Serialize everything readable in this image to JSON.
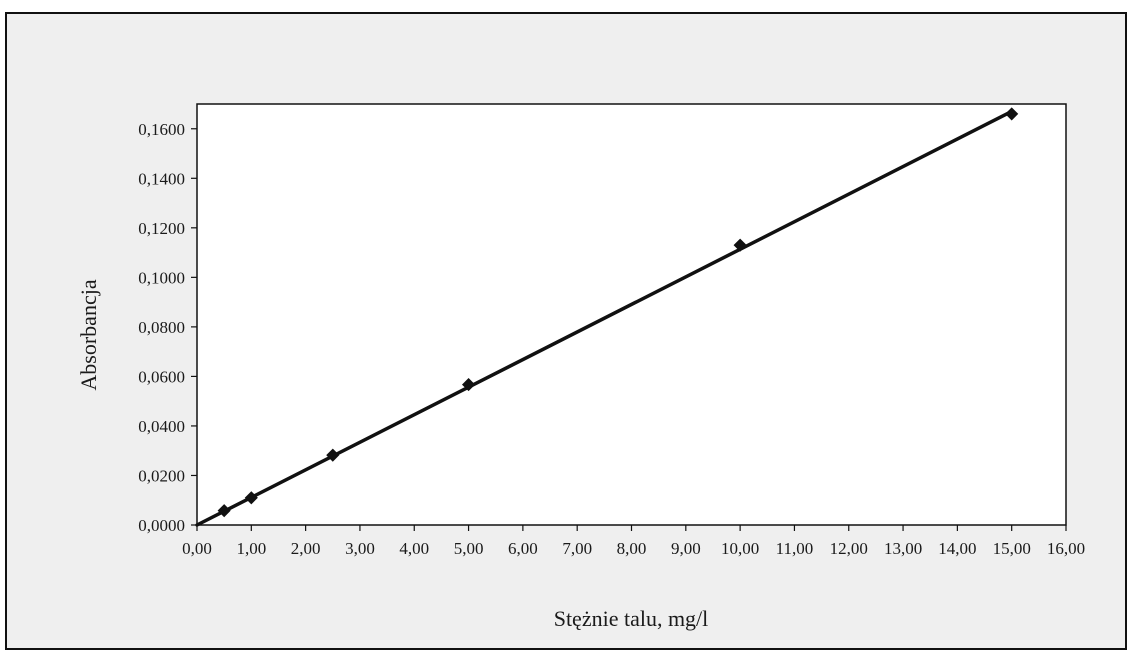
{
  "chart_data": {
    "type": "scatter",
    "title": "",
    "xlabel": "Stężnie talu, mg/l",
    "ylabel": "Absorbancja",
    "xlim": [
      0,
      16
    ],
    "ylim": [
      0,
      0.17
    ],
    "x_ticks": [
      0,
      1,
      2,
      3,
      4,
      5,
      6,
      7,
      8,
      9,
      10,
      11,
      12,
      13,
      14,
      15,
      16
    ],
    "x_tick_labels": [
      "0,00",
      "1,00",
      "2,00",
      "3,00",
      "4,00",
      "5,00",
      "6,00",
      "7,00",
      "8,00",
      "9,00",
      "10,00",
      "11,00",
      "12,00",
      "13,00",
      "14,00",
      "15,00",
      "16,00"
    ],
    "y_ticks": [
      0,
      0.02,
      0.04,
      0.06,
      0.08,
      0.1,
      0.12,
      0.14,
      0.16
    ],
    "y_tick_labels": [
      "0,0000",
      "0,0200",
      "0,0400",
      "0,0600",
      "0,0800",
      "0,1000",
      "0,1200",
      "0,1400",
      "0,1600"
    ],
    "grid": false,
    "legend": "none",
    "series": [
      {
        "marker": "diamond",
        "x": [
          0.5,
          1.0,
          2.5,
          5.0,
          10.0,
          15.0
        ],
        "y": [
          0.0058,
          0.011,
          0.0282,
          0.0567,
          0.113,
          0.166
        ]
      }
    ],
    "trendline": {
      "type": "linear",
      "x": [
        0,
        15.0
      ],
      "y": [
        0,
        0.167
      ]
    },
    "colors": {
      "outer_background": "#efefef",
      "plot_background": "#ffffff",
      "ink": "#111111"
    }
  }
}
